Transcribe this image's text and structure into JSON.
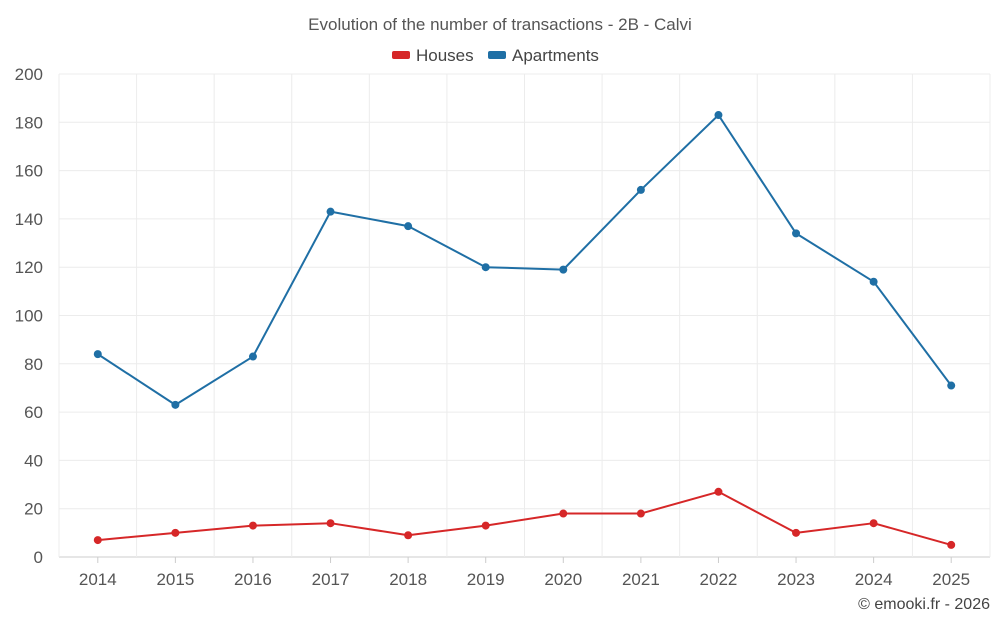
{
  "chart_data": {
    "type": "line",
    "title": "Evolution of the number of transactions - 2B - Calvi",
    "categories": [
      "2014",
      "2015",
      "2016",
      "2017",
      "2018",
      "2019",
      "2020",
      "2021",
      "2022",
      "2023",
      "2024",
      "2025"
    ],
    "series": [
      {
        "name": "Houses",
        "color": "#d62728",
        "values": [
          7,
          10,
          13,
          14,
          9,
          13,
          18,
          18,
          27,
          10,
          14,
          5
        ]
      },
      {
        "name": "Apartments",
        "color": "#1f6fa5",
        "values": [
          84,
          63,
          83,
          143,
          137,
          120,
          119,
          152,
          183,
          134,
          114,
          71
        ]
      }
    ],
    "ylim": [
      0,
      200
    ],
    "yticks": [
      0,
      20,
      40,
      60,
      80,
      100,
      120,
      140,
      160,
      180,
      200
    ],
    "legend_position": "top-center",
    "grid": true
  },
  "credit": "© emooki.fr - 2026"
}
